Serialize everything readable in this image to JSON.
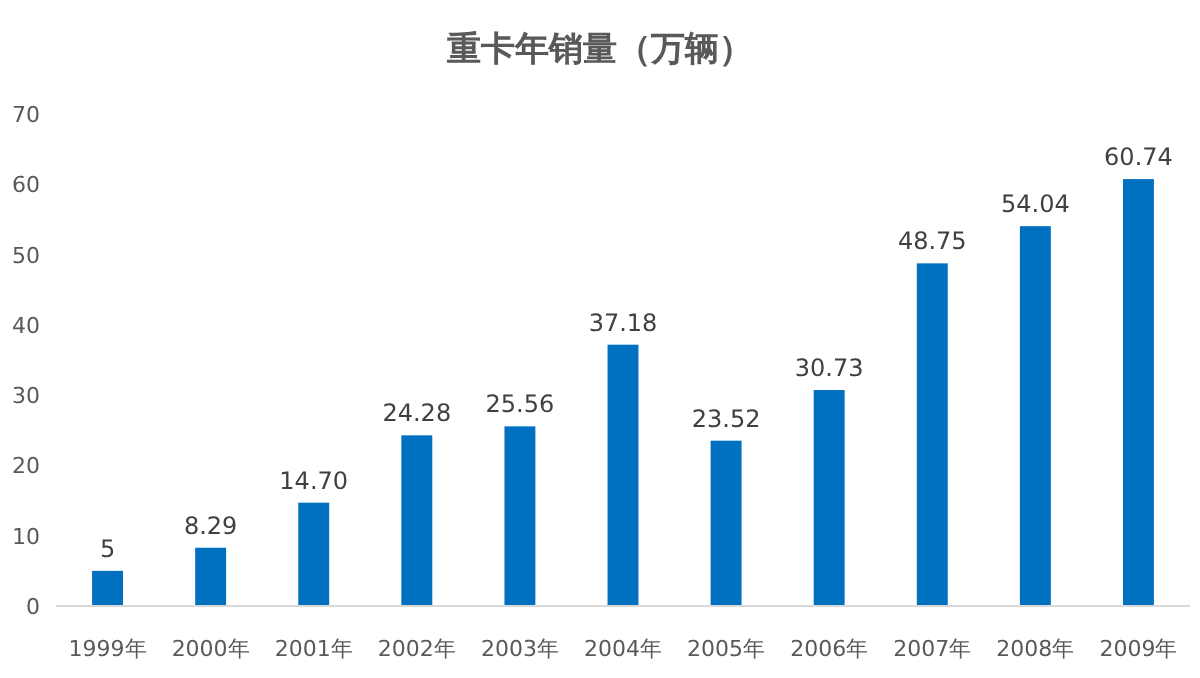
{
  "chart_data": {
    "type": "bar",
    "title": "重卡年销量（万辆）",
    "categories": [
      "1999年",
      "2000年",
      "2001年",
      "2002年",
      "2003年",
      "2004年",
      "2005年",
      "2006年",
      "2007年",
      "2008年",
      "2009年"
    ],
    "values": [
      5,
      8.29,
      14.7,
      24.28,
      25.56,
      37.18,
      23.52,
      30.73,
      48.75,
      54.04,
      60.74
    ],
    "value_labels": [
      "5",
      "8.29",
      "14.70",
      "24.28",
      "25.56",
      "37.18",
      "23.52",
      "30.73",
      "48.75",
      "54.04",
      "60.74"
    ],
    "color": "#0070c0",
    "ylim": [
      0,
      70
    ],
    "yticks": [
      0,
      10,
      20,
      30,
      40,
      50,
      60,
      70
    ],
    "grid": false
  }
}
